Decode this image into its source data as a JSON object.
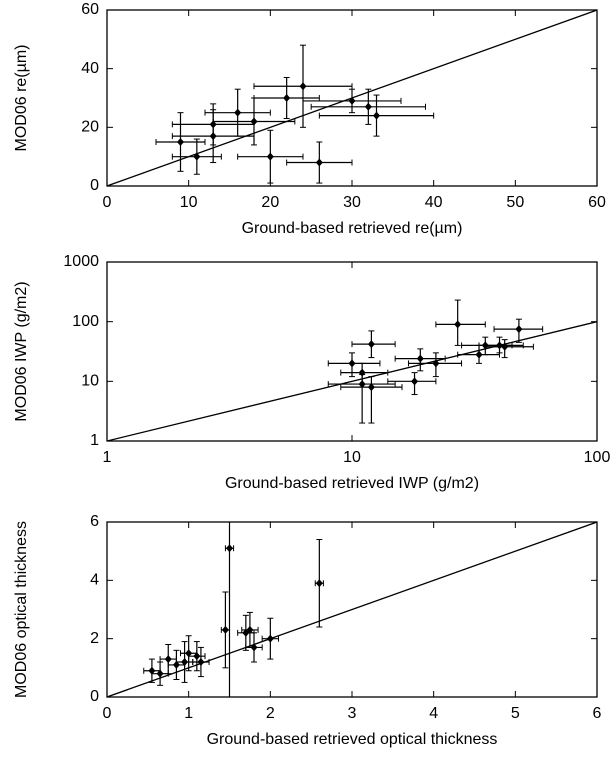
{
  "chart_data": [
    {
      "type": "scatter",
      "xlabel": "Ground-based retrieved re(µm)",
      "ylabel": "MOD06 re(µm)",
      "color": "#000000",
      "xlim": [
        0,
        60
      ],
      "ylim": [
        0,
        60
      ],
      "xticks": [
        0,
        10,
        20,
        30,
        40,
        50,
        60
      ],
      "yticks": [
        0,
        20,
        40,
        60
      ],
      "log": false,
      "x": [
        9,
        11,
        13,
        13,
        16,
        18,
        20,
        22,
        24,
        30,
        32,
        33,
        26
      ],
      "y": [
        15,
        10,
        17,
        21,
        25,
        22,
        10,
        30,
        34,
        29,
        27,
        24,
        8
      ],
      "xerr": [
        3,
        3,
        5,
        5,
        4,
        5,
        4,
        4,
        6,
        6,
        7,
        7,
        4
      ],
      "yerr": [
        10,
        6,
        9,
        7,
        8,
        8,
        9,
        7,
        14,
        4,
        6,
        7,
        7
      ]
    },
    {
      "type": "scatter",
      "xlabel": "Ground-based retrieved IWP (g/m2)",
      "ylabel": "MOD06 IWP (g/m2)",
      "color": "#000000",
      "xlim": [
        1,
        100
      ],
      "ylim": [
        1,
        1000
      ],
      "xticks": [
        1,
        10,
        100
      ],
      "yticks": [
        1,
        10,
        100,
        1000
      ],
      "log": true,
      "x": [
        10,
        11,
        12,
        11,
        12,
        18,
        19,
        22,
        27,
        33,
        35,
        40,
        42,
        48
      ],
      "y": [
        20,
        14,
        42,
        9,
        8,
        10,
        24,
        20,
        90,
        28,
        40,
        40,
        38,
        75
      ],
      "x_low": [
        8,
        9,
        10,
        8,
        9,
        14,
        15,
        17,
        22,
        27,
        28,
        33,
        35,
        38
      ],
      "x_high": [
        13,
        14,
        15,
        15,
        16,
        22,
        24,
        28,
        35,
        40,
        45,
        50,
        55,
        60
      ],
      "y_low": [
        12,
        9,
        25,
        2,
        2,
        6,
        15,
        12,
        40,
        20,
        28,
        30,
        25,
        45
      ],
      "y_high": [
        30,
        20,
        70,
        13,
        12,
        14,
        35,
        30,
        230,
        40,
        55,
        55,
        50,
        110
      ]
    },
    {
      "type": "scatter",
      "xlabel": "Ground-based retrieved optical thickness",
      "ylabel": "MOD06 optical thickness",
      "color": "#000000",
      "xlim": [
        0,
        6
      ],
      "ylim": [
        0,
        6
      ],
      "xticks": [
        0,
        1,
        2,
        3,
        4,
        5,
        6
      ],
      "yticks": [
        0,
        2,
        4,
        6
      ],
      "log": false,
      "x": [
        0.55,
        0.65,
        0.75,
        0.85,
        0.95,
        1.0,
        1.1,
        1.15,
        1.45,
        1.5,
        1.7,
        1.75,
        1.8,
        2.0,
        2.6
      ],
      "y": [
        0.9,
        0.8,
        1.3,
        1.1,
        1.2,
        1.5,
        1.4,
        1.2,
        2.3,
        5.1,
        2.2,
        2.3,
        1.7,
        2.0,
        3.9
      ],
      "xerr": [
        0.1,
        0.1,
        0.1,
        0.1,
        0.1,
        0.1,
        0.1,
        0.1,
        0.05,
        0.05,
        0.1,
        0.1,
        0.1,
        0.1,
        0.05
      ],
      "yerr": [
        0.4,
        0.4,
        0.5,
        0.5,
        0.7,
        0.6,
        0.5,
        0.5,
        1.3,
        6,
        0.6,
        0.6,
        0.5,
        0.7,
        1.5
      ]
    }
  ]
}
